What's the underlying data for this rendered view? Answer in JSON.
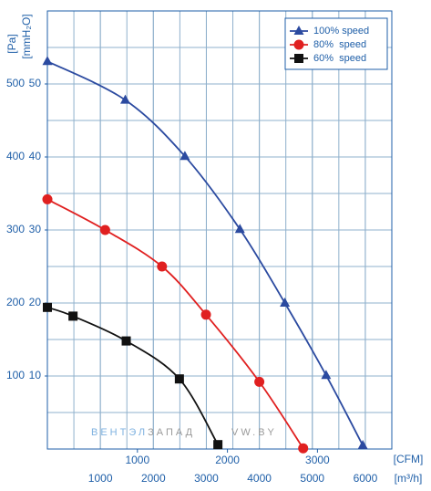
{
  "chart_data": {
    "type": "line",
    "x_label": "[m³/h]",
    "x2_label": "[CFM]",
    "y_label": "[Pa]",
    "y2_label": "[mmH₂O]",
    "xlim": [
      0,
      6500
    ],
    "xticks": [
      1000,
      2000,
      3000,
      4000,
      5000,
      6000
    ],
    "x2lim": [
      0,
      3826
    ],
    "x2ticks": [
      1000,
      2000,
      3000
    ],
    "ylim": [
      0,
      600
    ],
    "yticks": [
      100,
      200,
      300,
      400,
      500
    ],
    "y2lim": [
      0,
      60
    ],
    "y2ticks": [
      10,
      20,
      30,
      40,
      50
    ],
    "grid": true,
    "legend": "upper right",
    "series": [
      {
        "name": "100% speed",
        "color": "#2b4aa0",
        "marker": "triangle",
        "x": [
          0,
          1470,
          2595,
          3633,
          4481,
          5260,
          5952
        ],
        "values": [
          531,
          478,
          401,
          301,
          200,
          101,
          5
        ]
      },
      {
        "name": "80%  speed",
        "color": "#e02020",
        "marker": "circle",
        "x": [
          0,
          1090,
          2163,
          2993,
          4000,
          4827
        ],
        "values": [
          342,
          300,
          250,
          184,
          92,
          1
        ]
      },
      {
        "name": "60%  speed",
        "color": "#111111",
        "marker": "square",
        "x": [
          0,
          484,
          1488,
          2491,
          3218
        ],
        "values": [
          194,
          182,
          148,
          96,
          6
        ]
      }
    ],
    "watermark": [
      "ВЕНТЭЛ",
      "ЗАПАД",
      "VW.BY"
    ]
  }
}
